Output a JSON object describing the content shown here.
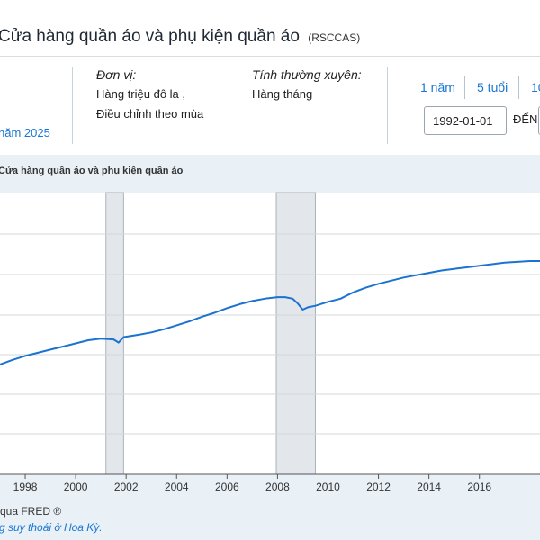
{
  "header": {
    "title": "Cửa hàng quần áo và phụ kiện quần áo",
    "series_id": "(RSCCAS)"
  },
  "meta": {
    "left_fragment": "năm 2025",
    "units_title": "Đơn vị:",
    "units_line1": "Hàng triệu đô la ,",
    "units_line2": "Điều chỉnh theo mùa",
    "freq_title": "Tính thường xuyên:",
    "freq_value": "Hàng tháng"
  },
  "controls": {
    "range_1y": "1 năm",
    "range_5y": "5 tuổi",
    "range_10y": "10",
    "start_date": "1992-01-01",
    "to_label": "ĐẾN"
  },
  "footer": {
    "source": "qua FRED ®",
    "recession_note": "g suy thoái ở Hoa Kỳ."
  },
  "chart_data": {
    "type": "line",
    "title": "Cửa hàng quần áo và phụ kiện quần áo",
    "xlabel": "",
    "ylabel": "",
    "x_ticks": [
      "1998",
      "2000",
      "2002",
      "2004",
      "2006",
      "2008",
      "2010",
      "2012",
      "2014",
      "2016"
    ],
    "xlim": [
      1997.0,
      2018.4
    ],
    "y_scale": "relative (no y tick labels visible)",
    "grid": true,
    "line_color": "#1a73d0",
    "recession_periods": [
      [
        2001.2,
        2001.9
      ],
      [
        2007.95,
        2009.5
      ]
    ],
    "series": [
      {
        "x": [
          1997.0,
          1997.5,
          1998.0,
          1998.5,
          1999.0,
          1999.5,
          2000.0,
          2000.5,
          2001.0,
          2001.5,
          2001.7,
          2001.9,
          2002.5,
          2003.0,
          2003.5,
          2004.0,
          2004.5,
          2005.0,
          2005.5,
          2006.0,
          2006.5,
          2007.0,
          2007.5,
          2008.0,
          2008.3,
          2008.6,
          2008.8,
          2009.0,
          2009.2,
          2009.5,
          2010.0,
          2010.5,
          2011.0,
          2011.5,
          2012.0,
          2012.5,
          2013.0,
          2013.5,
          2014.0,
          2014.5,
          2015.0,
          2015.5,
          2016.0,
          2016.5,
          2017.0,
          2017.5,
          2018.0,
          2018.4
        ],
        "y": [
          0.0,
          0.06,
          0.11,
          0.15,
          0.19,
          0.23,
          0.27,
          0.31,
          0.33,
          0.32,
          0.28,
          0.35,
          0.38,
          0.41,
          0.45,
          0.5,
          0.55,
          0.61,
          0.66,
          0.72,
          0.77,
          0.81,
          0.84,
          0.86,
          0.86,
          0.84,
          0.78,
          0.7,
          0.73,
          0.75,
          0.8,
          0.84,
          0.92,
          0.98,
          1.03,
          1.07,
          1.11,
          1.14,
          1.17,
          1.2,
          1.22,
          1.24,
          1.26,
          1.28,
          1.3,
          1.31,
          1.32,
          1.32
        ]
      }
    ]
  }
}
